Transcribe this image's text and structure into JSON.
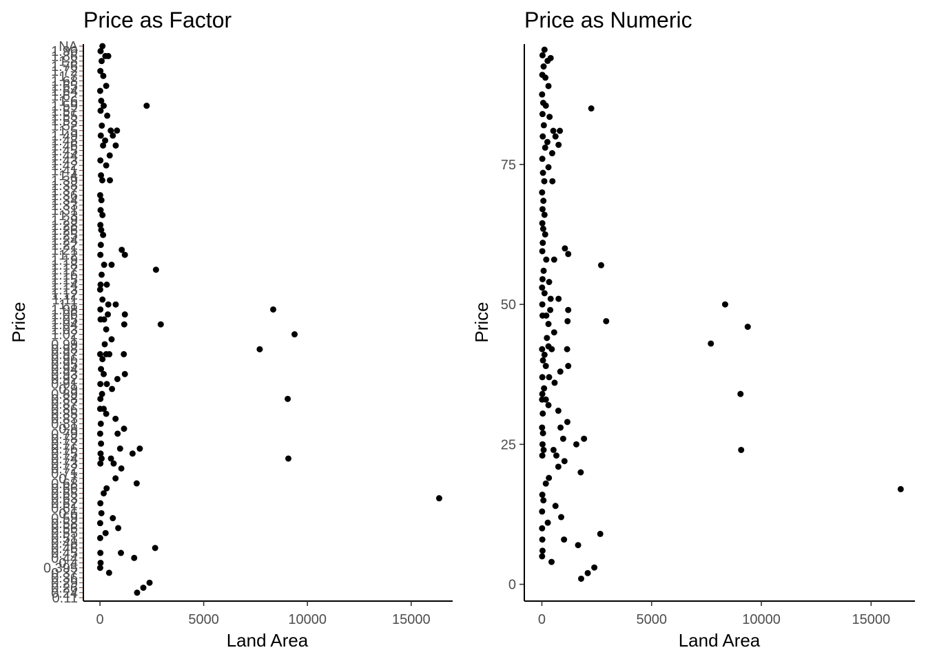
{
  "chart_data": [
    {
      "type": "scatter",
      "title": "Price as Factor",
      "xlabel": "Land Area",
      "ylabel": "Price",
      "xlim": [
        -800,
        17000
      ],
      "x_ticks": [
        0,
        5000,
        10000,
        15000
      ],
      "y_scale": "categorical",
      "y_tick_labels": [
        "0.11",
        "0.24",
        "0.26",
        "0.29",
        "0.36",
        "0.37",
        "0.395",
        "0.4",
        "0.44",
        "0.45",
        "0.46",
        "0.48",
        "0.51",
        "0.55",
        "0.56",
        "0.58",
        "0.59",
        "0.6",
        "0.61",
        "0.62",
        "0.63",
        "0.65",
        "0.66",
        "0.68",
        "0.7",
        "0.71",
        "0.72",
        "0.73",
        "0.74",
        "0.75",
        "0.76",
        "0.77",
        "0.78",
        "0.79",
        "0.8",
        "0.81",
        "0.83",
        "0.85",
        "0.86",
        "0.87",
        "0.88",
        "0.89",
        "0.9",
        "0.91",
        "0.92",
        "0.93",
        "0.94",
        "0.95",
        "0.96",
        "0.97",
        "0.98",
        "0.99",
        "1",
        "1.02",
        "1.03",
        "1.04",
        "1.05",
        "1.06",
        "1.08",
        "1.1",
        "1.11",
        "1.12",
        "1.13",
        "1.14",
        "1.15",
        "1.16",
        "1.17",
        "1.18",
        "1.19",
        "1.2",
        "1.21",
        "1.22",
        "1.24",
        "1.25",
        "1.26",
        "1.28",
        "1.29",
        "1.3",
        "1.31",
        "1.33",
        "1.34",
        "1.36",
        "1.37",
        "1.38",
        "1.39",
        "1.4",
        "1.41",
        "1.42",
        "1.43",
        "1.44",
        "1.45",
        "1.46",
        "1.48",
        "1.49",
        "1.5",
        "1.52",
        "1.53",
        "1.55",
        "1.57",
        "1.59",
        "1.6",
        "1.62",
        "1.64",
        "1.65",
        "1.68",
        "1.7",
        "1.72",
        "1.76",
        "1.8",
        "1.86",
        "1.96",
        "NA"
      ],
      "grid": false,
      "legend": "none"
    },
    {
      "type": "scatter",
      "title": "Price as Numeric",
      "xlabel": "Land Area",
      "ylabel": "Price",
      "xlim": [
        -800,
        17000
      ],
      "ylim": [
        -3,
        96.5
      ],
      "x_ticks": [
        0,
        5000,
        10000,
        15000
      ],
      "y_ticks": [
        0,
        25,
        50,
        75
      ],
      "grid": false,
      "legend": "none"
    }
  ],
  "points": [
    {
      "x": 30,
      "y": 94.5
    },
    {
      "x": 120,
      "y": 95.5
    },
    {
      "x": 400,
      "y": 94
    },
    {
      "x": 80,
      "y": 92.5
    },
    {
      "x": 260,
      "y": 93.5
    },
    {
      "x": 20,
      "y": 91
    },
    {
      "x": 160,
      "y": 90.5
    },
    {
      "x": 300,
      "y": 89
    },
    {
      "x": 10,
      "y": 87.5
    },
    {
      "x": 60,
      "y": 86
    },
    {
      "x": 180,
      "y": 85.5
    },
    {
      "x": 2250,
      "y": 85
    },
    {
      "x": 30,
      "y": 84
    },
    {
      "x": 350,
      "y": 83.5
    },
    {
      "x": 90,
      "y": 82
    },
    {
      "x": 520,
      "y": 81
    },
    {
      "x": 820,
      "y": 81
    },
    {
      "x": 40,
      "y": 80
    },
    {
      "x": 250,
      "y": 79
    },
    {
      "x": 620,
      "y": 80
    },
    {
      "x": 760,
      "y": 78.5
    },
    {
      "x": 150,
      "y": 78
    },
    {
      "x": 470,
      "y": 77
    },
    {
      "x": 20,
      "y": 76
    },
    {
      "x": 300,
      "y": 74.5
    },
    {
      "x": 50,
      "y": 73.5
    },
    {
      "x": 110,
      "y": 72
    },
    {
      "x": 480,
      "y": 72
    },
    {
      "x": 10,
      "y": 70
    },
    {
      "x": 70,
      "y": 68.5
    },
    {
      "x": 30,
      "y": 67
    },
    {
      "x": 120,
      "y": 66
    },
    {
      "x": 20,
      "y": 64.5
    },
    {
      "x": 60,
      "y": 63.5
    },
    {
      "x": 150,
      "y": 62.5
    },
    {
      "x": 40,
      "y": 61
    },
    {
      "x": 1050,
      "y": 60
    },
    {
      "x": 1200,
      "y": 59
    },
    {
      "x": 20,
      "y": 59.5
    },
    {
      "x": 200,
      "y": 58
    },
    {
      "x": 560,
      "y": 58
    },
    {
      "x": 2700,
      "y": 57
    },
    {
      "x": 80,
      "y": 56
    },
    {
      "x": 30,
      "y": 54.5
    },
    {
      "x": 330,
      "y": 54
    },
    {
      "x": 10,
      "y": 53
    },
    {
      "x": 120,
      "y": 52
    },
    {
      "x": 400,
      "y": 51
    },
    {
      "x": 760,
      "y": 51
    },
    {
      "x": 20,
      "y": 50
    },
    {
      "x": 8350,
      "y": 50
    },
    {
      "x": 380,
      "y": 49
    },
    {
      "x": 1200,
      "y": 49
    },
    {
      "x": 30,
      "y": 48
    },
    {
      "x": 200,
      "y": 48
    },
    {
      "x": 2930,
      "y": 47
    },
    {
      "x": 1170,
      "y": 47
    },
    {
      "x": 300,
      "y": 46.5
    },
    {
      "x": 9380,
      "y": 46
    },
    {
      "x": 560,
      "y": 45
    },
    {
      "x": 230,
      "y": 44
    },
    {
      "x": 7700,
      "y": 43
    },
    {
      "x": 300,
      "y": 42.5
    },
    {
      "x": 10,
      "y": 42
    },
    {
      "x": 120,
      "y": 41
    },
    {
      "x": 1150,
      "y": 42
    },
    {
      "x": 450,
      "y": 42
    },
    {
      "x": 50,
      "y": 40
    },
    {
      "x": 180,
      "y": 39
    },
    {
      "x": 1200,
      "y": 39
    },
    {
      "x": 840,
      "y": 38
    },
    {
      "x": 20,
      "y": 37
    },
    {
      "x": 330,
      "y": 37
    },
    {
      "x": 100,
      "y": 35
    },
    {
      "x": 580,
      "y": 36
    },
    {
      "x": 20,
      "y": 34
    },
    {
      "x": 9050,
      "y": 34
    },
    {
      "x": 10,
      "y": 33
    },
    {
      "x": 180,
      "y": 33
    },
    {
      "x": 300,
      "y": 32
    },
    {
      "x": 750,
      "y": 31
    },
    {
      "x": 40,
      "y": 30.5
    },
    {
      "x": 1160,
      "y": 29
    },
    {
      "x": 10,
      "y": 28
    },
    {
      "x": 850,
      "y": 28
    },
    {
      "x": 50,
      "y": 27
    },
    {
      "x": 970,
      "y": 26
    },
    {
      "x": 30,
      "y": 25
    },
    {
      "x": 1920,
      "y": 26
    },
    {
      "x": 1570,
      "y": 25
    },
    {
      "x": 80,
      "y": 24
    },
    {
      "x": 530,
      "y": 24
    },
    {
      "x": 9080,
      "y": 24
    },
    {
      "x": 20,
      "y": 23
    },
    {
      "x": 660,
      "y": 23
    },
    {
      "x": 1030,
      "y": 22
    },
    {
      "x": 750,
      "y": 21
    },
    {
      "x": 1770,
      "y": 20
    },
    {
      "x": 320,
      "y": 19
    },
    {
      "x": 180,
      "y": 18
    },
    {
      "x": 16350,
      "y": 17
    },
    {
      "x": 20,
      "y": 16
    },
    {
      "x": 70,
      "y": 15
    },
    {
      "x": 620,
      "y": 14
    },
    {
      "x": 10,
      "y": 13
    },
    {
      "x": 880,
      "y": 12
    },
    {
      "x": 270,
      "y": 11
    },
    {
      "x": 10,
      "y": 10
    },
    {
      "x": 2660,
      "y": 9
    },
    {
      "x": 20,
      "y": 8
    },
    {
      "x": 1010,
      "y": 8
    },
    {
      "x": 1650,
      "y": 7
    },
    {
      "x": 30,
      "y": 6
    },
    {
      "x": 10,
      "y": 5
    },
    {
      "x": 440,
      "y": 4
    },
    {
      "x": 2390,
      "y": 3
    },
    {
      "x": 2090,
      "y": 2
    },
    {
      "x": 1790,
      "y": 1
    }
  ]
}
